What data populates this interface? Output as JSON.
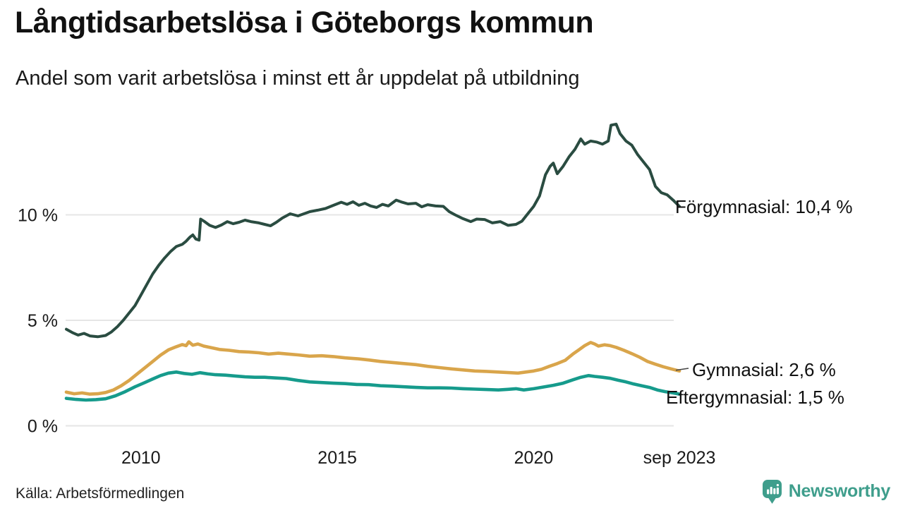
{
  "header": {
    "title": "Långtidsarbetslösa i Göteborgs kommun",
    "subtitle": "Andel som varit arbetslösa i minst ett år uppdelat på utbildning"
  },
  "footer": {
    "source": "Källa: Arbetsförmedlingen",
    "brand": "Newsworthy"
  },
  "colors": {
    "forgymnasial": "#2a4c41",
    "gymnasial": "#d9a54b",
    "eftergymnasial": "#169b8c",
    "grid": "#e6e6e6",
    "text": "#1a1a1a",
    "brand_teal": "#3f9e8c",
    "connector": "#444444"
  },
  "chart_data": {
    "type": "line",
    "title": "Långtidsarbetslösa i Göteborgs kommun",
    "subtitle": "Andel som varit arbetslösa i minst ett år uppdelat på utbildning",
    "unit": "%",
    "grid": true,
    "legend_position": "right-of-line-ends",
    "x_axis": {
      "range": [
        2008.1,
        2023.71
      ],
      "ticks": [
        {
          "label": "2010",
          "year": 2010
        },
        {
          "label": "2015",
          "year": 2015
        },
        {
          "label": "2020",
          "year": 2020
        },
        {
          "label": "sep 2023",
          "year": 2023.71
        }
      ]
    },
    "y_axis": {
      "range": [
        0,
        15.2
      ],
      "ticks": [
        {
          "label": "0 %",
          "value": 0
        },
        {
          "label": "5 %",
          "value": 5
        },
        {
          "label": "10 %",
          "value": 10
        }
      ]
    },
    "series": [
      {
        "name": "Förgymnasial",
        "end_label": "Förgymnasial: 10,4 %",
        "final_value": 10.4,
        "color": "#2a4c41",
        "connector": false,
        "points": [
          [
            2008.1,
            4.58
          ],
          [
            2008.25,
            4.42
          ],
          [
            2008.4,
            4.3
          ],
          [
            2008.55,
            4.38
          ],
          [
            2008.7,
            4.26
          ],
          [
            2008.9,
            4.22
          ],
          [
            2009.1,
            4.28
          ],
          [
            2009.25,
            4.45
          ],
          [
            2009.4,
            4.7
          ],
          [
            2009.55,
            5.0
          ],
          [
            2009.7,
            5.35
          ],
          [
            2009.85,
            5.7
          ],
          [
            2010.0,
            6.2
          ],
          [
            2010.15,
            6.7
          ],
          [
            2010.3,
            7.2
          ],
          [
            2010.45,
            7.6
          ],
          [
            2010.6,
            7.95
          ],
          [
            2010.75,
            8.25
          ],
          [
            2010.9,
            8.5
          ],
          [
            2011.05,
            8.6
          ],
          [
            2011.15,
            8.75
          ],
          [
            2011.25,
            8.95
          ],
          [
            2011.32,
            9.05
          ],
          [
            2011.4,
            8.85
          ],
          [
            2011.48,
            8.8
          ],
          [
            2011.52,
            9.8
          ],
          [
            2011.62,
            9.68
          ],
          [
            2011.75,
            9.5
          ],
          [
            2011.9,
            9.4
          ],
          [
            2012.05,
            9.52
          ],
          [
            2012.2,
            9.68
          ],
          [
            2012.35,
            9.58
          ],
          [
            2012.5,
            9.65
          ],
          [
            2012.65,
            9.75
          ],
          [
            2012.8,
            9.68
          ],
          [
            2013.0,
            9.62
          ],
          [
            2013.15,
            9.55
          ],
          [
            2013.3,
            9.48
          ],
          [
            2013.45,
            9.65
          ],
          [
            2013.6,
            9.85
          ],
          [
            2013.8,
            10.05
          ],
          [
            2014.0,
            9.95
          ],
          [
            2014.15,
            10.05
          ],
          [
            2014.3,
            10.15
          ],
          [
            2014.5,
            10.22
          ],
          [
            2014.7,
            10.3
          ],
          [
            2014.9,
            10.45
          ],
          [
            2015.1,
            10.6
          ],
          [
            2015.25,
            10.5
          ],
          [
            2015.4,
            10.62
          ],
          [
            2015.55,
            10.45
          ],
          [
            2015.7,
            10.55
          ],
          [
            2015.85,
            10.42
          ],
          [
            2016.0,
            10.35
          ],
          [
            2016.15,
            10.5
          ],
          [
            2016.3,
            10.42
          ],
          [
            2016.5,
            10.7
          ],
          [
            2016.65,
            10.6
          ],
          [
            2016.8,
            10.52
          ],
          [
            2017.0,
            10.55
          ],
          [
            2017.15,
            10.38
          ],
          [
            2017.3,
            10.48
          ],
          [
            2017.5,
            10.42
          ],
          [
            2017.7,
            10.4
          ],
          [
            2017.85,
            10.15
          ],
          [
            2018.0,
            10.0
          ],
          [
            2018.2,
            9.82
          ],
          [
            2018.4,
            9.68
          ],
          [
            2018.55,
            9.8
          ],
          [
            2018.75,
            9.78
          ],
          [
            2018.95,
            9.62
          ],
          [
            2019.15,
            9.68
          ],
          [
            2019.35,
            9.5
          ],
          [
            2019.55,
            9.55
          ],
          [
            2019.7,
            9.7
          ],
          [
            2019.85,
            10.05
          ],
          [
            2020.0,
            10.4
          ],
          [
            2020.15,
            10.9
          ],
          [
            2020.3,
            11.9
          ],
          [
            2020.42,
            12.3
          ],
          [
            2020.5,
            12.45
          ],
          [
            2020.6,
            11.95
          ],
          [
            2020.75,
            12.3
          ],
          [
            2020.9,
            12.75
          ],
          [
            2021.05,
            13.1
          ],
          [
            2021.2,
            13.6
          ],
          [
            2021.3,
            13.35
          ],
          [
            2021.45,
            13.5
          ],
          [
            2021.6,
            13.45
          ],
          [
            2021.75,
            13.35
          ],
          [
            2021.9,
            13.5
          ],
          [
            2021.97,
            14.25
          ],
          [
            2022.1,
            14.3
          ],
          [
            2022.2,
            13.85
          ],
          [
            2022.35,
            13.5
          ],
          [
            2022.5,
            13.3
          ],
          [
            2022.65,
            12.85
          ],
          [
            2022.8,
            12.5
          ],
          [
            2022.95,
            12.15
          ],
          [
            2023.1,
            11.35
          ],
          [
            2023.25,
            11.05
          ],
          [
            2023.4,
            10.95
          ],
          [
            2023.55,
            10.7
          ],
          [
            2023.71,
            10.4
          ]
        ]
      },
      {
        "name": "Gymnasial",
        "end_label": "Gymnasial:  2,6 %",
        "final_value": 2.6,
        "color": "#d9a54b",
        "connector": true,
        "points": [
          [
            2008.1,
            1.6
          ],
          [
            2008.3,
            1.52
          ],
          [
            2008.5,
            1.56
          ],
          [
            2008.7,
            1.5
          ],
          [
            2008.9,
            1.52
          ],
          [
            2009.1,
            1.58
          ],
          [
            2009.3,
            1.7
          ],
          [
            2009.5,
            1.9
          ],
          [
            2009.7,
            2.15
          ],
          [
            2009.9,
            2.45
          ],
          [
            2010.1,
            2.75
          ],
          [
            2010.3,
            3.05
          ],
          [
            2010.5,
            3.35
          ],
          [
            2010.7,
            3.6
          ],
          [
            2010.9,
            3.75
          ],
          [
            2011.05,
            3.85
          ],
          [
            2011.15,
            3.8
          ],
          [
            2011.22,
            3.98
          ],
          [
            2011.32,
            3.82
          ],
          [
            2011.45,
            3.88
          ],
          [
            2011.6,
            3.78
          ],
          [
            2011.8,
            3.7
          ],
          [
            2012.0,
            3.62
          ],
          [
            2012.25,
            3.58
          ],
          [
            2012.5,
            3.52
          ],
          [
            2012.75,
            3.5
          ],
          [
            2013.0,
            3.46
          ],
          [
            2013.25,
            3.4
          ],
          [
            2013.5,
            3.44
          ],
          [
            2013.75,
            3.4
          ],
          [
            2014.0,
            3.36
          ],
          [
            2014.3,
            3.3
          ],
          [
            2014.6,
            3.32
          ],
          [
            2014.9,
            3.28
          ],
          [
            2015.2,
            3.22
          ],
          [
            2015.5,
            3.18
          ],
          [
            2015.8,
            3.12
          ],
          [
            2016.1,
            3.05
          ],
          [
            2016.4,
            3.0
          ],
          [
            2016.7,
            2.95
          ],
          [
            2017.0,
            2.9
          ],
          [
            2017.3,
            2.82
          ],
          [
            2017.6,
            2.76
          ],
          [
            2017.9,
            2.7
          ],
          [
            2018.2,
            2.65
          ],
          [
            2018.5,
            2.6
          ],
          [
            2018.8,
            2.58
          ],
          [
            2019.1,
            2.55
          ],
          [
            2019.4,
            2.52
          ],
          [
            2019.6,
            2.5
          ],
          [
            2019.8,
            2.55
          ],
          [
            2020.0,
            2.6
          ],
          [
            2020.2,
            2.68
          ],
          [
            2020.4,
            2.82
          ],
          [
            2020.6,
            2.95
          ],
          [
            2020.8,
            3.1
          ],
          [
            2021.0,
            3.4
          ],
          [
            2021.15,
            3.6
          ],
          [
            2021.3,
            3.8
          ],
          [
            2021.45,
            3.95
          ],
          [
            2021.55,
            3.88
          ],
          [
            2021.65,
            3.78
          ],
          [
            2021.8,
            3.84
          ],
          [
            2021.95,
            3.8
          ],
          [
            2022.1,
            3.72
          ],
          [
            2022.3,
            3.58
          ],
          [
            2022.5,
            3.42
          ],
          [
            2022.7,
            3.25
          ],
          [
            2022.9,
            3.05
          ],
          [
            2023.1,
            2.92
          ],
          [
            2023.3,
            2.8
          ],
          [
            2023.5,
            2.7
          ],
          [
            2023.71,
            2.6
          ]
        ]
      },
      {
        "name": "Eftergymnasial",
        "end_label": "Eftergymnasial:  1,5 %",
        "final_value": 1.5,
        "color": "#169b8c",
        "connector": false,
        "points": [
          [
            2008.1,
            1.3
          ],
          [
            2008.35,
            1.25
          ],
          [
            2008.6,
            1.22
          ],
          [
            2008.85,
            1.24
          ],
          [
            2009.1,
            1.28
          ],
          [
            2009.35,
            1.42
          ],
          [
            2009.6,
            1.62
          ],
          [
            2009.85,
            1.85
          ],
          [
            2010.1,
            2.05
          ],
          [
            2010.3,
            2.22
          ],
          [
            2010.5,
            2.38
          ],
          [
            2010.7,
            2.5
          ],
          [
            2010.9,
            2.55
          ],
          [
            2011.1,
            2.48
          ],
          [
            2011.3,
            2.44
          ],
          [
            2011.5,
            2.52
          ],
          [
            2011.7,
            2.46
          ],
          [
            2011.9,
            2.42
          ],
          [
            2012.15,
            2.4
          ],
          [
            2012.4,
            2.36
          ],
          [
            2012.65,
            2.32
          ],
          [
            2012.9,
            2.3
          ],
          [
            2013.15,
            2.3
          ],
          [
            2013.4,
            2.27
          ],
          [
            2013.7,
            2.24
          ],
          [
            2014.0,
            2.15
          ],
          [
            2014.3,
            2.08
          ],
          [
            2014.6,
            2.05
          ],
          [
            2014.9,
            2.02
          ],
          [
            2015.2,
            2.0
          ],
          [
            2015.5,
            1.96
          ],
          [
            2015.8,
            1.95
          ],
          [
            2016.1,
            1.9
          ],
          [
            2016.4,
            1.88
          ],
          [
            2016.7,
            1.85
          ],
          [
            2017.0,
            1.82
          ],
          [
            2017.3,
            1.8
          ],
          [
            2017.6,
            1.8
          ],
          [
            2017.9,
            1.79
          ],
          [
            2018.2,
            1.76
          ],
          [
            2018.5,
            1.74
          ],
          [
            2018.8,
            1.72
          ],
          [
            2019.1,
            1.7
          ],
          [
            2019.35,
            1.73
          ],
          [
            2019.55,
            1.76
          ],
          [
            2019.75,
            1.7
          ],
          [
            2020.0,
            1.76
          ],
          [
            2020.25,
            1.84
          ],
          [
            2020.5,
            1.92
          ],
          [
            2020.75,
            2.02
          ],
          [
            2021.0,
            2.18
          ],
          [
            2021.2,
            2.3
          ],
          [
            2021.4,
            2.38
          ],
          [
            2021.55,
            2.34
          ],
          [
            2021.75,
            2.3
          ],
          [
            2021.95,
            2.25
          ],
          [
            2022.15,
            2.16
          ],
          [
            2022.35,
            2.08
          ],
          [
            2022.55,
            1.98
          ],
          [
            2022.75,
            1.9
          ],
          [
            2022.95,
            1.82
          ],
          [
            2023.15,
            1.7
          ],
          [
            2023.35,
            1.62
          ],
          [
            2023.55,
            1.56
          ],
          [
            2023.71,
            1.5
          ]
        ]
      }
    ]
  }
}
